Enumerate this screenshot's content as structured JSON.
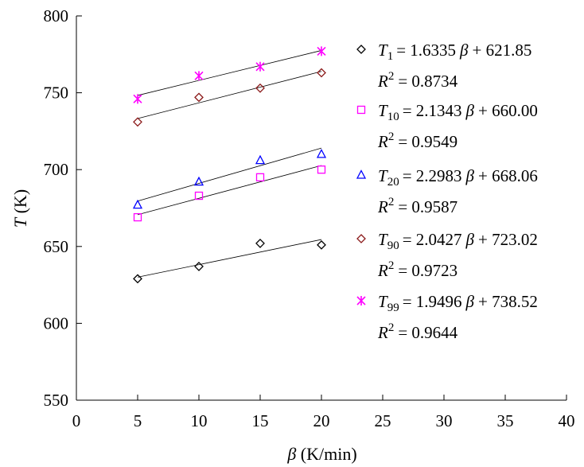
{
  "chart_data": {
    "type": "scatter",
    "xlabel_symbol": "β",
    "xlabel_unit": "(K/min)",
    "ylabel_symbol": "T",
    "ylabel_unit": "(K)",
    "xlim": [
      0,
      40
    ],
    "ylim": [
      550,
      800
    ],
    "x_ticks": [
      0,
      5,
      10,
      15,
      20,
      25,
      30,
      35,
      40
    ],
    "y_ticks": [
      550,
      600,
      650,
      700,
      750,
      800
    ],
    "grid": false,
    "legend_position": "right",
    "series": [
      {
        "name": "T1",
        "sub": "1",
        "marker": "diamond",
        "color": "#000000",
        "x": [
          5,
          10,
          15,
          20
        ],
        "y": [
          629,
          637,
          652,
          651
        ],
        "fit": {
          "slope": 1.6335,
          "intercept": 621.85
        },
        "eq_rest": "= 1.6335",
        "eq_tail": "+ 621.85",
        "r2": "= 0.8734"
      },
      {
        "name": "T10",
        "sub": "10",
        "marker": "square",
        "color": "#ff00ff",
        "x": [
          5,
          10,
          15,
          20
        ],
        "y": [
          669,
          683,
          695,
          700
        ],
        "fit": {
          "slope": 2.1343,
          "intercept": 660.0
        },
        "eq_rest": "= 2.1343",
        "eq_tail": "+ 660.00",
        "r2": "= 0.9549"
      },
      {
        "name": "T20",
        "sub": "20",
        "marker": "triangle",
        "color": "#0000ff",
        "x": [
          5,
          10,
          15,
          20
        ],
        "y": [
          677,
          692,
          706,
          710
        ],
        "fit": {
          "slope": 2.2983,
          "intercept": 668.06
        },
        "eq_rest": "= 2.2983",
        "eq_tail": "+ 668.06",
        "r2": "= 0.9587"
      },
      {
        "name": "T90",
        "sub": "90",
        "marker": "diamond",
        "color": "#8b1a1a",
        "x": [
          5,
          10,
          15,
          20
        ],
        "y": [
          731,
          747,
          753,
          763
        ],
        "fit": {
          "slope": 2.0427,
          "intercept": 723.02
        },
        "eq_rest": "= 2.0427",
        "eq_tail": "+ 723.02",
        "r2": "= 0.9723"
      },
      {
        "name": "T99",
        "sub": "99",
        "marker": "star",
        "color": "#ff00ff",
        "x": [
          5,
          10,
          15,
          20
        ],
        "y": [
          746,
          761,
          767,
          777
        ],
        "fit": {
          "slope": 1.9496,
          "intercept": 738.52
        },
        "eq_rest": "= 1.9496",
        "eq_tail": "+ 738.52",
        "r2": "= 0.9644"
      }
    ]
  }
}
